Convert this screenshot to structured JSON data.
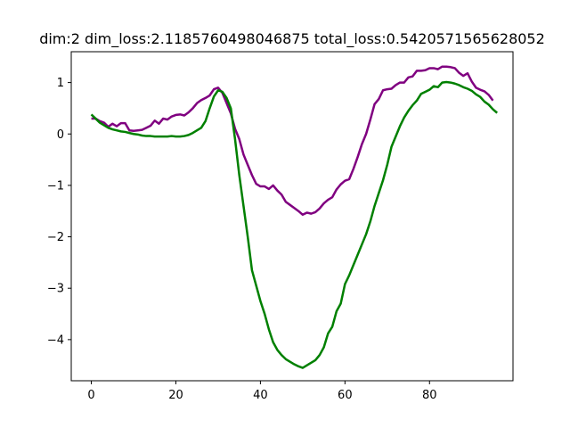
{
  "chart_data": {
    "type": "line",
    "title": "dim:2 dim_loss:2.1185760498046875 total_loss:0.5420571565628052",
    "xlabel": "",
    "ylabel": "",
    "xlim": [
      -4.75,
      99.75
    ],
    "ylim": [
      -4.8,
      1.6
    ],
    "xticks": [
      0,
      20,
      40,
      60,
      80
    ],
    "yticks": [
      -4,
      -3,
      -2,
      -1,
      0,
      1
    ],
    "grid": false,
    "series": [
      {
        "color": "#800080",
        "values": [
          0.3,
          0.3,
          0.25,
          0.22,
          0.14,
          0.2,
          0.15,
          0.21,
          0.21,
          0.07,
          0.06,
          0.07,
          0.08,
          0.12,
          0.16,
          0.26,
          0.2,
          0.3,
          0.28,
          0.34,
          0.37,
          0.38,
          0.36,
          0.42,
          0.5,
          0.6,
          0.66,
          0.7,
          0.75,
          0.87,
          0.9,
          0.8,
          0.6,
          0.4,
          0.1,
          -0.1,
          -0.4,
          -0.6,
          -0.8,
          -0.97,
          -1.02,
          -1.02,
          -1.07,
          -1.0,
          -1.1,
          -1.18,
          -1.32,
          -1.38,
          -1.44,
          -1.5,
          -1.57,
          -1.53,
          -1.55,
          -1.52,
          -1.45,
          -1.35,
          -1.28,
          -1.23,
          -1.08,
          -0.98,
          -0.91,
          -0.88,
          -0.68,
          -0.45,
          -0.2,
          0.0,
          0.28,
          0.58,
          0.68,
          0.85,
          0.87,
          0.88,
          0.95,
          1.0,
          1.0,
          1.1,
          1.12,
          1.23,
          1.23,
          1.24,
          1.28,
          1.28,
          1.26,
          1.31,
          1.31,
          1.3,
          1.28,
          1.19,
          1.13,
          1.18,
          1.02,
          0.9,
          0.86,
          0.83,
          0.76,
          0.65
        ]
      },
      {
        "color": "#008000",
        "values": [
          0.38,
          0.3,
          0.22,
          0.17,
          0.12,
          0.09,
          0.07,
          0.05,
          0.04,
          0.02,
          0.0,
          -0.01,
          -0.03,
          -0.04,
          -0.04,
          -0.05,
          -0.05,
          -0.05,
          -0.05,
          -0.04,
          -0.05,
          -0.05,
          -0.04,
          -0.02,
          0.02,
          0.07,
          0.12,
          0.25,
          0.5,
          0.73,
          0.85,
          0.82,
          0.7,
          0.5,
          -0.1,
          -0.8,
          -1.4,
          -2.0,
          -2.65,
          -2.95,
          -3.25,
          -3.5,
          -3.8,
          -4.05,
          -4.2,
          -4.3,
          -4.38,
          -4.43,
          -4.48,
          -4.52,
          -4.55,
          -4.5,
          -4.45,
          -4.4,
          -4.3,
          -4.15,
          -3.88,
          -3.75,
          -3.45,
          -3.3,
          -2.92,
          -2.75,
          -2.55,
          -2.35,
          -2.15,
          -1.95,
          -1.7,
          -1.4,
          -1.15,
          -0.9,
          -0.6,
          -0.25,
          -0.05,
          0.15,
          0.32,
          0.45,
          0.56,
          0.65,
          0.78,
          0.82,
          0.86,
          0.93,
          0.91,
          1.0,
          1.01,
          1.0,
          0.98,
          0.95,
          0.91,
          0.88,
          0.84,
          0.77,
          0.72,
          0.63,
          0.57,
          0.48,
          0.41
        ]
      }
    ]
  }
}
